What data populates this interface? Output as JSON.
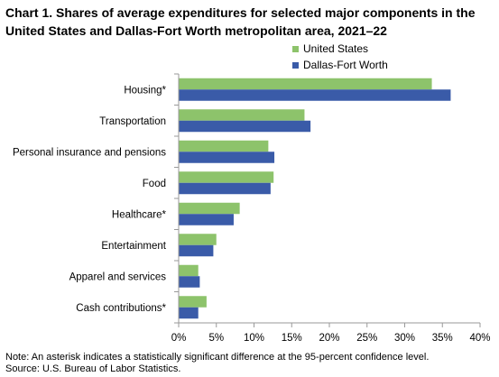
{
  "title": "Chart 1. Shares of average expenditures for selected major components in the United States and Dallas-Fort Worth metropolitan area, 2021–22",
  "colors": {
    "united_states": "#8DC36B",
    "dallas_fort_worth": "#3A5BA8",
    "axis": "#999999"
  },
  "legend": [
    {
      "label": "United States",
      "color": "#8DC36B"
    },
    {
      "label": "Dallas-Fort Worth",
      "color": "#3A5BA8"
    }
  ],
  "footnote": {
    "note": "Note: An asterisk indicates a statistically significant difference at the 95-percent confidence level.",
    "source": "Source: U.S. Bureau of Labor Statistics."
  },
  "chart_data": {
    "type": "bar",
    "orientation": "horizontal",
    "title": "Chart 1. Shares of average expenditures for selected major components in the United States and Dallas-Fort Worth metropolitan area, 2021–22",
    "categories": [
      "Housing*",
      "Transportation",
      "Personal insurance and pensions",
      "Food",
      "Healthcare*",
      "Entertainment",
      "Apparel and services",
      "Cash contributions*"
    ],
    "series": [
      {
        "name": "United States",
        "values": [
          33.6,
          16.7,
          11.9,
          12.6,
          8.1,
          5.0,
          2.6,
          3.7
        ]
      },
      {
        "name": "Dallas-Fort Worth",
        "values": [
          36.1,
          17.5,
          12.7,
          12.2,
          7.3,
          4.6,
          2.8,
          2.6
        ]
      }
    ],
    "xlim": [
      0,
      40
    ],
    "xticks": [
      "0%",
      "5%",
      "10%",
      "15%",
      "20%",
      "25%",
      "30%",
      "35%",
      "40%"
    ],
    "grid": false,
    "legend_position": "top-right"
  }
}
